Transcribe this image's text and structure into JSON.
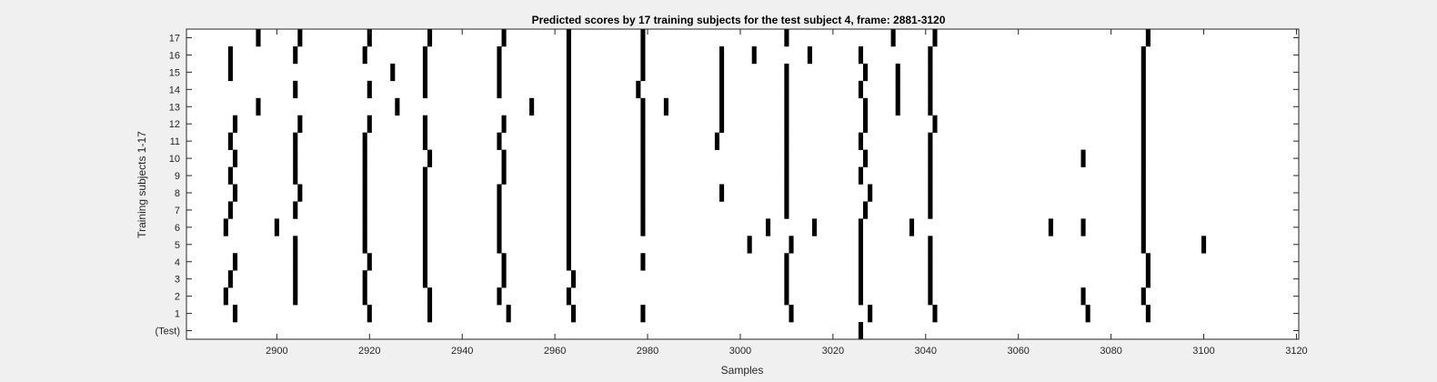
{
  "chart_data": {
    "type": "heatmap",
    "title": "Predicted scores by 17 training subjects for the test subject 4, frame: 2881-3120",
    "xlabel": "Samples",
    "ylabel": "Training subjects 1-17",
    "xlim": [
      2881,
      3120
    ],
    "xticks": [
      2900,
      2920,
      2940,
      2960,
      2980,
      3000,
      3020,
      3040,
      3060,
      3080,
      3100,
      3120
    ],
    "xtick_labels": [
      "2900",
      "2920",
      "2940",
      "2960",
      "2980",
      "3000",
      "3020",
      "3040",
      "3060",
      "3080",
      "3100",
      "3120"
    ],
    "rows": [
      "(Test)",
      "1",
      "2",
      "3",
      "4",
      "5",
      "6",
      "7",
      "8",
      "9",
      "10",
      "11",
      "12",
      "13",
      "14",
      "15",
      "16",
      "17"
    ],
    "grid": false,
    "mark_color": "#000000",
    "background_color": "#ffffff",
    "series": [
      {
        "row": "(Test)",
        "x": [
          3026
        ]
      },
      {
        "row": "1",
        "x": [
          2891,
          2920,
          2933,
          2950,
          2964,
          2979,
          3011,
          3028,
          3042,
          3075,
          3088
        ]
      },
      {
        "row": "2",
        "x": [
          2889,
          2904,
          2919,
          2933,
          2948,
          2963,
          3010,
          3026,
          3041,
          3074,
          3087
        ]
      },
      {
        "row": "3",
        "x": [
          2890,
          2904,
          2919,
          2932,
          2949,
          2964,
          3010,
          3026,
          3041,
          3088
        ]
      },
      {
        "row": "4",
        "x": [
          2891,
          2904,
          2920,
          2932,
          2949,
          2963,
          2979,
          3010,
          3026,
          3041,
          3088
        ]
      },
      {
        "row": "5",
        "x": [
          2904,
          2919,
          2932,
          2948,
          2963,
          3002,
          3011,
          3026,
          3041,
          3087,
          3100
        ]
      },
      {
        "row": "6",
        "x": [
          2889,
          2900,
          2919,
          2932,
          2948,
          2963,
          2979,
          3006,
          3016,
          3026,
          3037,
          3067,
          3074,
          3087
        ]
      },
      {
        "row": "7",
        "x": [
          2890,
          2904,
          2919,
          2932,
          2948,
          2963,
          2979,
          3010,
          3027,
          3041,
          3087
        ]
      },
      {
        "row": "8",
        "x": [
          2891,
          2905,
          2919,
          2932,
          2948,
          2963,
          2979,
          2996,
          3010,
          3028,
          3041,
          3087
        ]
      },
      {
        "row": "9",
        "x": [
          2890,
          2904,
          2919,
          2932,
          2949,
          2963,
          2979,
          3010,
          3026,
          3041,
          3087
        ]
      },
      {
        "row": "10",
        "x": [
          2891,
          2904,
          2919,
          2933,
          2949,
          2963,
          2979,
          3010,
          3027,
          3041,
          3074,
          3087
        ]
      },
      {
        "row": "11",
        "x": [
          2890,
          2904,
          2919,
          2932,
          2948,
          2963,
          2979,
          2995,
          3010,
          3026,
          3041,
          3087
        ]
      },
      {
        "row": "12",
        "x": [
          2891,
          2905,
          2920,
          2932,
          2949,
          2963,
          2979,
          2996,
          3010,
          3027,
          3042,
          3087
        ]
      },
      {
        "row": "13",
        "x": [
          2896,
          2926,
          2955,
          2963,
          2979,
          2984,
          2996,
          3010,
          3027,
          3034,
          3041,
          3087
        ]
      },
      {
        "row": "14",
        "x": [
          2904,
          2920,
          2932,
          2948,
          2963,
          2978,
          2996,
          3010,
          3026,
          3034,
          3041,
          3087
        ]
      },
      {
        "row": "15",
        "x": [
          2890,
          2925,
          2932,
          2948,
          2963,
          2979,
          2996,
          3010,
          3027,
          3034,
          3041,
          3087
        ]
      },
      {
        "row": "16",
        "x": [
          2890,
          2904,
          2919,
          2932,
          2948,
          2963,
          2979,
          2996,
          3003,
          3015,
          3026,
          3041,
          3087
        ]
      },
      {
        "row": "17",
        "x": [
          2896,
          2905,
          2920,
          2933,
          2949,
          2963,
          2979,
          3010,
          3033,
          3042,
          3088
        ]
      }
    ]
  }
}
